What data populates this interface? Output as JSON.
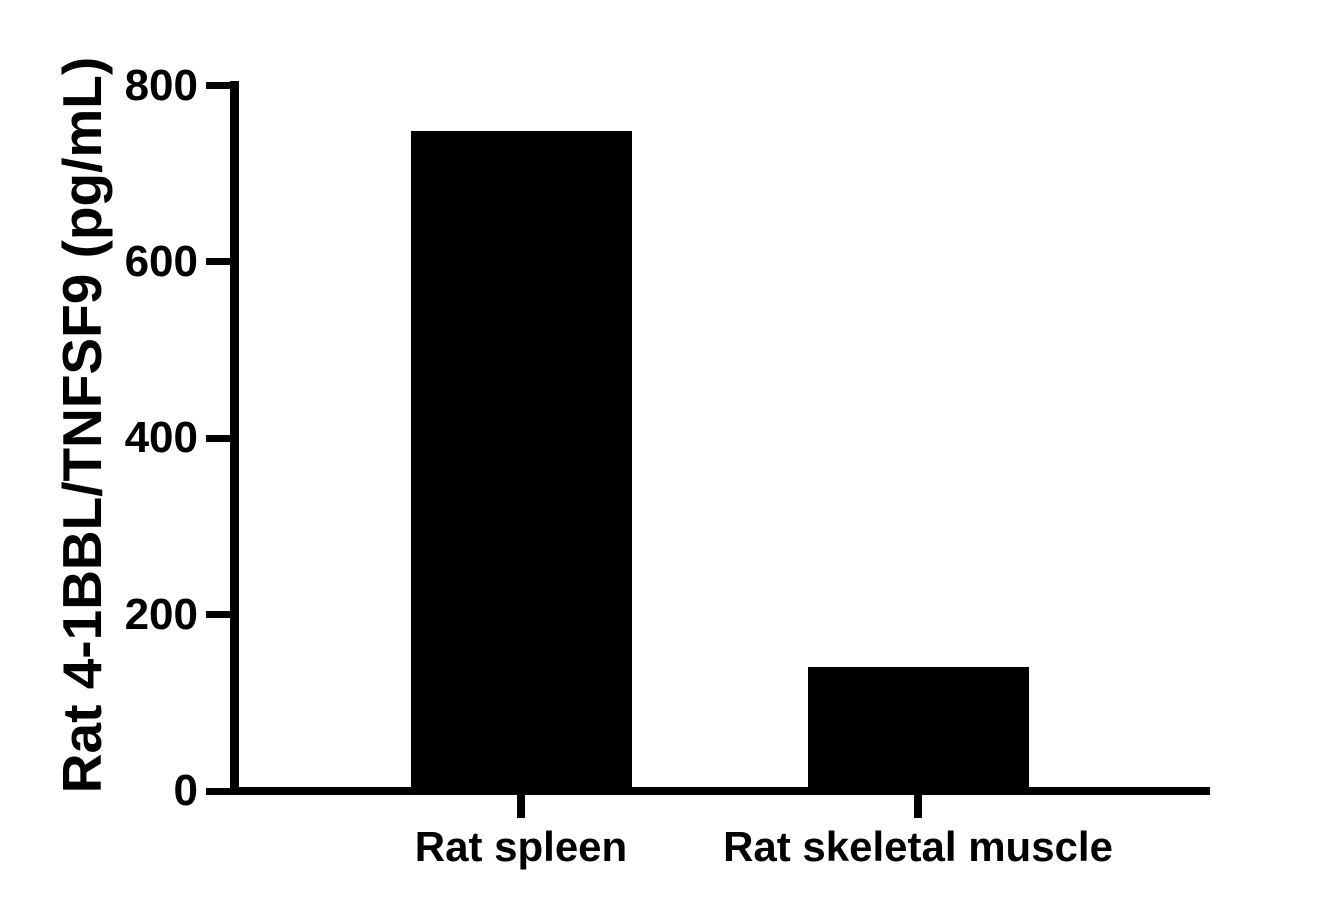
{
  "chart_data": {
    "type": "bar",
    "title": "",
    "xlabel": "",
    "ylabel": "Rat 4-1BBL/TNFSF9 (pg/mL)",
    "categories": [
      "Rat spleen",
      "Rat skeletal muscle"
    ],
    "values": [
      748,
      141
    ],
    "units": "pg/mL",
    "ylim": [
      0,
      800
    ],
    "yticks": [
      0,
      200,
      400,
      600,
      800
    ],
    "bar_color": "#000000",
    "axis_color": "#000000",
    "background_color": "#ffffff",
    "grid": false,
    "legend_position": "none"
  }
}
